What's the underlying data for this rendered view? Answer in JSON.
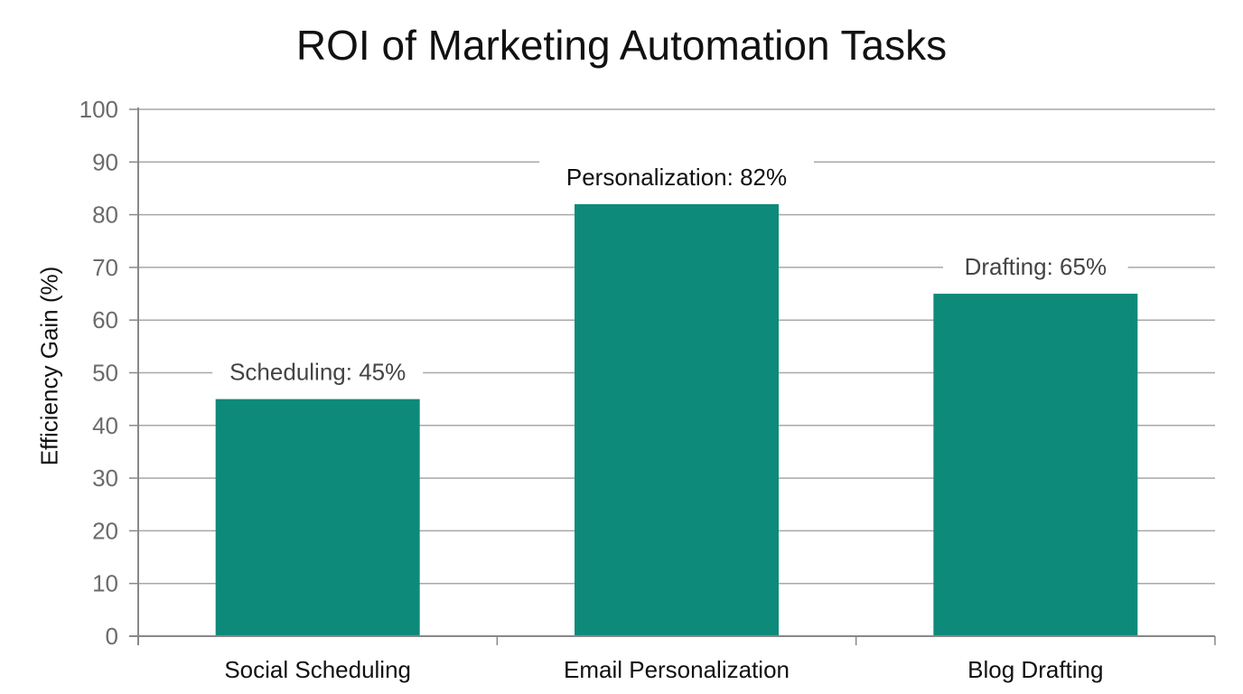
{
  "chart_data": {
    "type": "bar",
    "title": "ROI of Marketing Automation Tasks",
    "xlabel": "",
    "ylabel": "Efficiency Gain (%)",
    "ylim": [
      0,
      100
    ],
    "yticks": [
      0,
      10,
      20,
      30,
      40,
      50,
      60,
      70,
      80,
      90,
      100
    ],
    "grid": true,
    "legend": null,
    "categories": [
      "Social Scheduling",
      "Email Personalization",
      "Blog Drafting"
    ],
    "values": [
      45,
      82,
      65
    ],
    "data_labels": [
      "Scheduling: 45%",
      "Personalization: 82%",
      "Drafting: 65%"
    ],
    "bar_color": "#0e8a7a"
  }
}
